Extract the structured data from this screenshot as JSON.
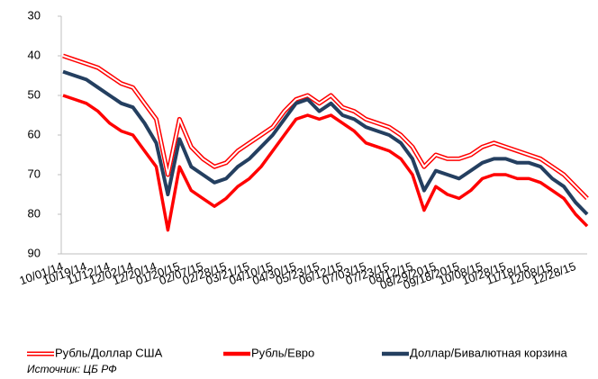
{
  "chart_data": {
    "type": "line",
    "categories": [
      "10/01/14",
      null,
      "10/19/14",
      null,
      "11/12/14",
      null,
      "12/02/14",
      null,
      "12/20/14",
      null,
      "01/20/15",
      null,
      "02/07/15",
      null,
      "02/28/15",
      null,
      "03/21/15",
      null,
      "04/10/15",
      null,
      "04/30/15",
      null,
      "05/23/15",
      null,
      "06/12/15",
      null,
      "07/03/15",
      null,
      "07/23/15",
      null,
      "08/12/15",
      null,
      "08/29/2015",
      null,
      "09/18/2015",
      null,
      "10/08/15",
      null,
      "10/28/15",
      null,
      "11/18/15",
      null,
      "12/08/15",
      null,
      "12/28/15",
      null
    ],
    "series": [
      {
        "name": "Рубль/Доллар США",
        "color": "#ff0000",
        "style": "double",
        "values": [
          40,
          41,
          42,
          43,
          45,
          47,
          48,
          52,
          56,
          70,
          56,
          63,
          66,
          68,
          67,
          64,
          62,
          60,
          58,
          54,
          51,
          50,
          52,
          50,
          53,
          54,
          56,
          57,
          58,
          60,
          63,
          68,
          65,
          66,
          66,
          65,
          63,
          62,
          63,
          64,
          65,
          66,
          68,
          70,
          73,
          76
        ]
      },
      {
        "name": "Рубль/Евро",
        "color": "#ff0000",
        "style": "solid",
        "values": [
          50,
          51,
          52,
          54,
          57,
          59,
          60,
          64,
          68,
          84,
          68,
          74,
          76,
          78,
          76,
          73,
          71,
          68,
          64,
          60,
          56,
          55,
          56,
          55,
          57,
          59,
          62,
          63,
          64,
          66,
          70,
          79,
          73,
          75,
          76,
          74,
          71,
          70,
          70,
          71,
          71,
          72,
          74,
          76,
          80,
          83
        ]
      },
      {
        "name": "Доллар/Бивалютная корзина",
        "color": "#243f60",
        "style": "solid",
        "values": [
          44,
          45,
          46,
          48,
          50,
          52,
          53,
          57,
          62,
          75,
          61,
          68,
          70,
          72,
          71,
          68,
          66,
          63,
          60,
          56,
          52,
          51,
          54,
          52,
          55,
          56,
          58,
          59,
          60,
          62,
          66,
          74,
          69,
          70,
          71,
          69,
          67,
          66,
          66,
          67,
          67,
          68,
          71,
          73,
          77,
          80
        ]
      }
    ],
    "ylim": [
      30,
      90
    ],
    "yticks": [
      30,
      40,
      50,
      60,
      70,
      80,
      90
    ],
    "yreversed": true,
    "grid": false,
    "legend": "bottom",
    "source": "Источник: ЦБ РФ"
  }
}
